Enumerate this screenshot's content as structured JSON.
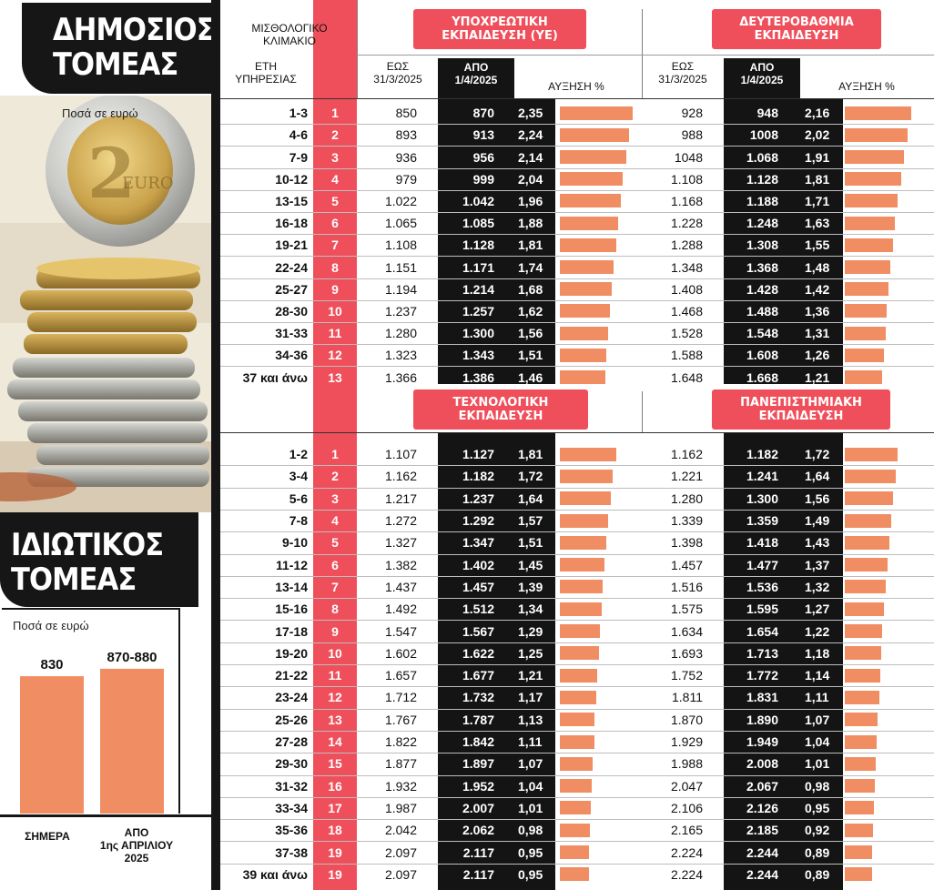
{
  "colors": {
    "accent": "#ef4f5b",
    "bar": "#f08d63",
    "dark": "#141414"
  },
  "public": {
    "title": "ΔΗΜΟΣΙΟΣ\nΤΟΜΕΑΣ",
    "note": "Ποσά σε ευρώ",
    "headers": {
      "grade_label": "ΜΙΣΘΟΛΟΓΙΚΟ\nΚΛΙΜΑΚΙΟ",
      "years_label": "ΕΤΗ\nΥΠΗΡΕΣΙΑΣ",
      "until": "ΕΩΣ\n31/3/2025",
      "from": "ΑΠΟ\n1/4/2025",
      "increase": "ΑΥΞΗΣΗ %"
    }
  },
  "private": {
    "title": "ΙΔΙΩΤΙΚΟΣ\nΤΟΜΕΑΣ",
    "note": "Ποσά σε ευρώ",
    "bars": [
      {
        "label": "ΣΗΜΕΡΑ",
        "value_label": "830",
        "value": 830
      },
      {
        "label": "ΑΠΟ\n1ης ΑΠΡΙΛΙΟΥ\n2025",
        "value_label": "870-880",
        "value": 875
      }
    ]
  },
  "chart_data": [
    {
      "type": "table",
      "title": "ΥΠΟΧΡΕΩΤΙΚΗ\nΕΚΠΑΙΔΕΥΣΗ (ΥΕ)",
      "rows": [
        {
          "years": "1-3",
          "grade": "1",
          "until": "850",
          "from": "870",
          "increase": "2,35",
          "pct": 2.35
        },
        {
          "years": "4-6",
          "grade": "2",
          "until": "893",
          "from": "913",
          "increase": "2,24",
          "pct": 2.24
        },
        {
          "years": "7-9",
          "grade": "3",
          "until": "936",
          "from": "956",
          "increase": "2,14",
          "pct": 2.14
        },
        {
          "years": "10-12",
          "grade": "4",
          "until": "979",
          "from": "999",
          "increase": "2,04",
          "pct": 2.04
        },
        {
          "years": "13-15",
          "grade": "5",
          "until": "1.022",
          "from": "1.042",
          "increase": "1,96",
          "pct": 1.96
        },
        {
          "years": "16-18",
          "grade": "6",
          "until": "1.065",
          "from": "1.085",
          "increase": "1,88",
          "pct": 1.88
        },
        {
          "years": "19-21",
          "grade": "7",
          "until": "1.108",
          "from": "1.128",
          "increase": "1,81",
          "pct": 1.81
        },
        {
          "years": "22-24",
          "grade": "8",
          "until": "1.151",
          "from": "1.171",
          "increase": "1,74",
          "pct": 1.74
        },
        {
          "years": "25-27",
          "grade": "9",
          "until": "1.194",
          "from": "1.214",
          "increase": "1,68",
          "pct": 1.68
        },
        {
          "years": "28-30",
          "grade": "10",
          "until": "1.237",
          "from": "1.257",
          "increase": "1,62",
          "pct": 1.62
        },
        {
          "years": "31-33",
          "grade": "11",
          "until": "1.280",
          "from": "1.300",
          "increase": "1,56",
          "pct": 1.56
        },
        {
          "years": "34-36",
          "grade": "12",
          "until": "1.323",
          "from": "1.343",
          "increase": "1,51",
          "pct": 1.51
        },
        {
          "years": "37 και άνω",
          "grade": "13",
          "until": "1.366",
          "from": "1.386",
          "increase": "1,46",
          "pct": 1.46
        }
      ]
    },
    {
      "type": "table",
      "title": "ΔΕΥΤΕΡΟΒΑΘΜΙΑ\nΕΚΠΑΙΔΕΥΣΗ",
      "rows": [
        {
          "until": "928",
          "from": "948",
          "increase": "2,16",
          "pct": 2.16
        },
        {
          "until": "988",
          "from": "1008",
          "increase": "2,02",
          "pct": 2.02
        },
        {
          "until": "1048",
          "from": "1.068",
          "increase": "1,91",
          "pct": 1.91
        },
        {
          "until": "1.108",
          "from": "1.128",
          "increase": "1,81",
          "pct": 1.81
        },
        {
          "until": "1.168",
          "from": "1.188",
          "increase": "1,71",
          "pct": 1.71
        },
        {
          "until": "1.228",
          "from": "1.248",
          "increase": "1,63",
          "pct": 1.63
        },
        {
          "until": "1.288",
          "from": "1.308",
          "increase": "1,55",
          "pct": 1.55
        },
        {
          "until": "1.348",
          "from": "1.368",
          "increase": "1,48",
          "pct": 1.48
        },
        {
          "until": "1.408",
          "from": "1.428",
          "increase": "1,42",
          "pct": 1.42
        },
        {
          "until": "1.468",
          "from": "1.488",
          "increase": "1,36",
          "pct": 1.36
        },
        {
          "until": "1.528",
          "from": "1.548",
          "increase": "1,31",
          "pct": 1.31
        },
        {
          "until": "1.588",
          "from": "1.608",
          "increase": "1,26",
          "pct": 1.26
        },
        {
          "until": "1.648",
          "from": "1.668",
          "increase": "1,21",
          "pct": 1.21
        }
      ]
    },
    {
      "type": "table",
      "title": "ΤΕΧΝΟΛΟΓΙΚΗ\nΕΚΠΑΙΔΕΥΣΗ",
      "rows": [
        {
          "years": "1-2",
          "grade": "1",
          "until": "1.107",
          "from": "1.127",
          "increase": "1,81",
          "pct": 1.81
        },
        {
          "years": "3-4",
          "grade": "2",
          "until": "1.162",
          "from": "1.182",
          "increase": "1,72",
          "pct": 1.72
        },
        {
          "years": "5-6",
          "grade": "3",
          "until": "1.217",
          "from": "1.237",
          "increase": "1,64",
          "pct": 1.64
        },
        {
          "years": "7-8",
          "grade": "4",
          "until": "1.272",
          "from": "1.292",
          "increase": "1,57",
          "pct": 1.57
        },
        {
          "years": "9-10",
          "grade": "5",
          "until": "1.327",
          "from": "1.347",
          "increase": "1,51",
          "pct": 1.51
        },
        {
          "years": "11-12",
          "grade": "6",
          "until": "1.382",
          "from": "1.402",
          "increase": "1,45",
          "pct": 1.45
        },
        {
          "years": "13-14",
          "grade": "7",
          "until": "1.437",
          "from": "1.457",
          "increase": "1,39",
          "pct": 1.39
        },
        {
          "years": "15-16",
          "grade": "8",
          "until": "1.492",
          "from": "1.512",
          "increase": "1,34",
          "pct": 1.34
        },
        {
          "years": "17-18",
          "grade": "9",
          "until": "1.547",
          "from": "1.567",
          "increase": "1,29",
          "pct": 1.29
        },
        {
          "years": "19-20",
          "grade": "10",
          "until": "1.602",
          "from": "1.622",
          "increase": "1,25",
          "pct": 1.25
        },
        {
          "years": "21-22",
          "grade": "11",
          "until": "1.657",
          "from": "1.677",
          "increase": "1,21",
          "pct": 1.21
        },
        {
          "years": "23-24",
          "grade": "12",
          "until": "1.712",
          "from": "1.732",
          "increase": "1,17",
          "pct": 1.17
        },
        {
          "years": "25-26",
          "grade": "13",
          "until": "1.767",
          "from": "1.787",
          "increase": "1,13",
          "pct": 1.13
        },
        {
          "years": "27-28",
          "grade": "14",
          "until": "1.822",
          "from": "1.842",
          "increase": "1,11",
          "pct": 1.11
        },
        {
          "years": "29-30",
          "grade": "15",
          "until": "1.877",
          "from": "1.897",
          "increase": "1,07",
          "pct": 1.07
        },
        {
          "years": "31-32",
          "grade": "16",
          "until": "1.932",
          "from": "1.952",
          "increase": "1,04",
          "pct": 1.04
        },
        {
          "years": "33-34",
          "grade": "17",
          "until": "1.987",
          "from": "2.007",
          "increase": "1,01",
          "pct": 1.01
        },
        {
          "years": "35-36",
          "grade": "18",
          "until": "2.042",
          "from": "2.062",
          "increase": "0,98",
          "pct": 0.98
        },
        {
          "years": "37-38",
          "grade": "19",
          "until": "2.097",
          "from": "2.117",
          "increase": "0,95",
          "pct": 0.95
        },
        {
          "years": "39 και άνω",
          "grade": "19",
          "until": "2.097",
          "from": "2.117",
          "increase": "0,95",
          "pct": 0.95
        }
      ]
    },
    {
      "type": "table",
      "title": "ΠΑΝΕΠΙΣΤΗΜΙΑΚΗ\nΕΚΠΑΙΔΕΥΣΗ",
      "rows": [
        {
          "until": "1.162",
          "from": "1.182",
          "increase": "1,72",
          "pct": 1.72
        },
        {
          "until": "1.221",
          "from": "1.241",
          "increase": "1,64",
          "pct": 1.64
        },
        {
          "until": "1.280",
          "from": "1.300",
          "increase": "1,56",
          "pct": 1.56
        },
        {
          "until": "1.339",
          "from": "1.359",
          "increase": "1,49",
          "pct": 1.49
        },
        {
          "until": "1.398",
          "from": "1.418",
          "increase": "1,43",
          "pct": 1.43
        },
        {
          "until": "1.457",
          "from": "1.477",
          "increase": "1,37",
          "pct": 1.37
        },
        {
          "until": "1.516",
          "from": "1.536",
          "increase": "1,32",
          "pct": 1.32
        },
        {
          "until": "1.575",
          "from": "1.595",
          "increase": "1,27",
          "pct": 1.27
        },
        {
          "until": "1.634",
          "from": "1.654",
          "increase": "1,22",
          "pct": 1.22
        },
        {
          "until": "1.693",
          "from": "1.713",
          "increase": "1,18",
          "pct": 1.18
        },
        {
          "until": "1.752",
          "from": "1.772",
          "increase": "1,14",
          "pct": 1.14
        },
        {
          "until": "1.811",
          "from": "1.831",
          "increase": "1,11",
          "pct": 1.11
        },
        {
          "until": "1.870",
          "from": "1.890",
          "increase": "1,07",
          "pct": 1.07
        },
        {
          "until": "1.929",
          "from": "1.949",
          "increase": "1,04",
          "pct": 1.04
        },
        {
          "until": "1.988",
          "from": "2.008",
          "increase": "1,01",
          "pct": 1.01
        },
        {
          "until": "2.047",
          "from": "2.067",
          "increase": "0,98",
          "pct": 0.98
        },
        {
          "until": "2.106",
          "from": "2.126",
          "increase": "0,95",
          "pct": 0.95
        },
        {
          "until": "2.165",
          "from": "2.185",
          "increase": "0,92",
          "pct": 0.92
        },
        {
          "until": "2.224",
          "from": "2.244",
          "increase": "0,89",
          "pct": 0.89
        },
        {
          "until": "2.224",
          "from": "2.244",
          "increase": "0,89",
          "pct": 0.89
        }
      ]
    }
  ]
}
